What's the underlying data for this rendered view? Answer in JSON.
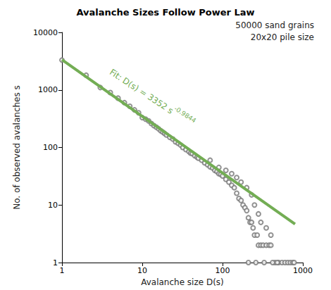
{
  "chart_data": {
    "type": "scatter",
    "title": "Avalanche Sizes Follow Power Law",
    "x_label": "Avalanche size D(s)",
    "y_label": "No. of observed avalanches s",
    "log": true,
    "grid": false,
    "xlim": [
      1,
      1000
    ],
    "xticks": [
      1,
      10,
      100,
      1000
    ],
    "ylim": [
      1,
      10000
    ],
    "yticks": [
      1,
      10,
      100,
      1000,
      10000
    ],
    "annotations": [
      {
        "text": "50000 sand grains"
      },
      {
        "text": "20x20 pile size"
      },
      {
        "text": "Fit: D(s) = 3352 s",
        "superscript": "-0.9844"
      }
    ],
    "series": [
      {
        "type": "scatter",
        "color": "#777777",
        "marker": "open_circle",
        "x": [
          1,
          2,
          3,
          4,
          5,
          6,
          7,
          8,
          9,
          10,
          11,
          12,
          13,
          14,
          15,
          16,
          17,
          18,
          19,
          20,
          22,
          24,
          26,
          28,
          30,
          32,
          35,
          38,
          40,
          42,
          45,
          48,
          50,
          55,
          60,
          65,
          70,
          75,
          80,
          85,
          90,
          95,
          100,
          110,
          120,
          130,
          140,
          150,
          160,
          170,
          180,
          190,
          200,
          210,
          220,
          230,
          240,
          250,
          270,
          280,
          300,
          320,
          350,
          380,
          400,
          450,
          500,
          550,
          600,
          650,
          700,
          750,
          780,
          70,
          90,
          110,
          130,
          150,
          170,
          200,
          230,
          250,
          280,
          300,
          350,
          400,
          210,
          260,
          330,
          420,
          480
        ],
        "values": [
          3300,
          1800,
          1100,
          900,
          720,
          600,
          520,
          450,
          400,
          330,
          310,
          290,
          260,
          240,
          225,
          210,
          195,
          185,
          175,
          165,
          150,
          140,
          125,
          118,
          110,
          100,
          92,
          85,
          80,
          78,
          72,
          68,
          65,
          60,
          54,
          50,
          46,
          44,
          40,
          38,
          35,
          34,
          32,
          28,
          25,
          22,
          20,
          16,
          13,
          12,
          10,
          9,
          8,
          6,
          5,
          5,
          4,
          3,
          3,
          2,
          2,
          2,
          2,
          2,
          2,
          1,
          1,
          1,
          1,
          1,
          1,
          1,
          1,
          60,
          45,
          40,
          35,
          30,
          25,
          20,
          15,
          10,
          7,
          5,
          4,
          3,
          1,
          1,
          1,
          1,
          1
        ]
      },
      {
        "type": "line",
        "color": "#73ad54",
        "line_style": "solid",
        "x": [
          1,
          800
        ],
        "values": [
          3352,
          4.66
        ]
      }
    ]
  }
}
